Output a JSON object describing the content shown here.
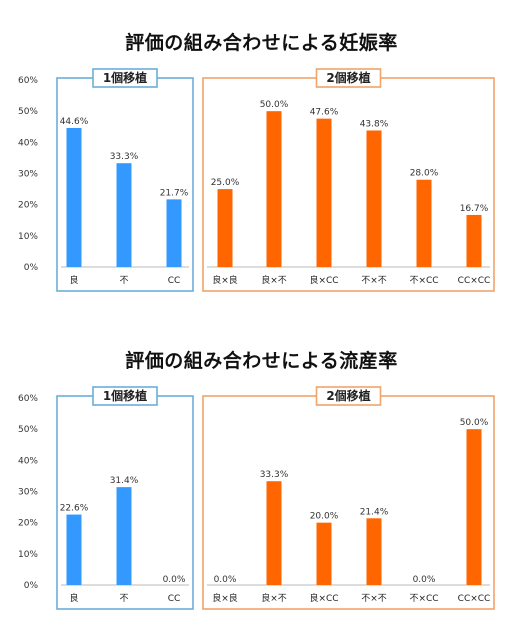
{
  "chart_data": [
    {
      "type": "bar",
      "title": "評価の組み合わせによる妊娠率",
      "ylim": [
        0,
        60
      ],
      "yticks": [
        "0%",
        "10%",
        "20%",
        "30%",
        "40%",
        "50%",
        "60%"
      ],
      "value_suffix": "%",
      "groups": [
        {
          "label": "1個移植",
          "color": "#3399FF",
          "border_color": "#6AAEDB",
          "categories": [
            "良",
            "不",
            "CC"
          ],
          "values": [
            44.6,
            33.3,
            21.7
          ]
        },
        {
          "label": "2個移植",
          "color": "#FF6600",
          "border_color": "#F0A46B",
          "categories": [
            "良×良",
            "良×不",
            "良×CC",
            "不×不",
            "不×CC",
            "CC×CC"
          ],
          "values": [
            25.0,
            50.0,
            47.6,
            43.8,
            28.0,
            16.7
          ]
        }
      ]
    },
    {
      "type": "bar",
      "title": "評価の組み合わせによる流産率",
      "ylim": [
        0,
        60
      ],
      "yticks": [
        "0%",
        "10%",
        "20%",
        "30%",
        "40%",
        "50%",
        "60%"
      ],
      "value_suffix": "%",
      "groups": [
        {
          "label": "1個移植",
          "color": "#3399FF",
          "border_color": "#6AAEDB",
          "categories": [
            "良",
            "不",
            "CC"
          ],
          "values": [
            22.6,
            31.4,
            0.0
          ]
        },
        {
          "label": "2個移植",
          "color": "#FF6600",
          "border_color": "#F0A46B",
          "categories": [
            "良×良",
            "良×不",
            "良×CC",
            "不×不",
            "不×CC",
            "CC×CC"
          ],
          "values": [
            0.0,
            33.3,
            20.0,
            21.4,
            0.0,
            50.0
          ]
        }
      ]
    }
  ]
}
